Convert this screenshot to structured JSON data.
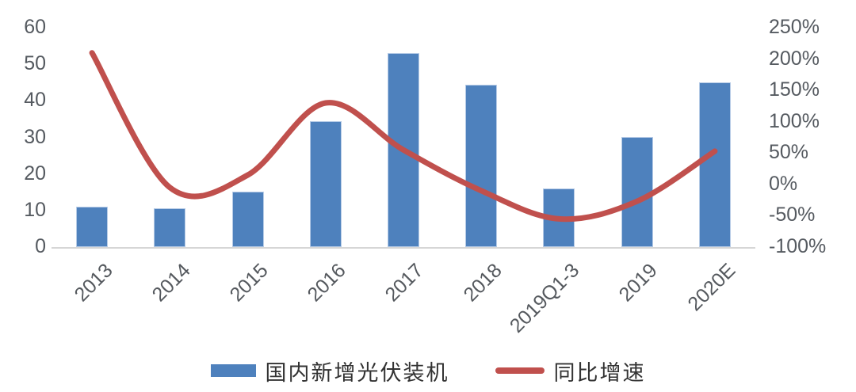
{
  "chart_data": {
    "type": "combo-bar-line",
    "title": "",
    "categories": [
      "2013",
      "2014",
      "2015",
      "2016",
      "2017",
      "2018",
      "2019Q1-3",
      "2019",
      "2020E"
    ],
    "series": [
      {
        "name": "国内新增光伏装机",
        "type": "bar",
        "axis": "left",
        "color": "#4e81bd",
        "values": [
          11,
          10.6,
          15.1,
          34.5,
          53,
          44.3,
          16,
          30.1,
          45
        ]
      },
      {
        "name": "同比增速",
        "type": "line",
        "axis": "right",
        "color": "#c0504d",
        "smooth": true,
        "values": [
          210,
          -5,
          15,
          130,
          55,
          -10,
          -55,
          -27,
          53
        ],
        "unit": "%"
      }
    ],
    "left_axis": {
      "min": 0,
      "max": 60,
      "tick_labels": [
        "60",
        "50",
        "40",
        "30",
        "20",
        "10",
        "0"
      ],
      "tick_values": [
        60,
        50,
        40,
        30,
        20,
        10,
        0
      ]
    },
    "right_axis": {
      "min": -100,
      "max": 250,
      "tick_labels": [
        "250%",
        "200%",
        "150%",
        "100%",
        "50%",
        "0%",
        "-50%",
        "-100%"
      ],
      "tick_values": [
        250,
        200,
        150,
        100,
        50,
        0,
        -50,
        -100
      ]
    },
    "grid": false,
    "legend_position": "bottom"
  },
  "legend": {
    "bar_label": "国内新增光伏装机",
    "line_label": "同比增速"
  },
  "colors": {
    "bar_fill": "#4e81bd",
    "bar_border": "#b6cbe6",
    "line": "#c0504d",
    "axis_text": "#555a60",
    "axis_line": "#d6d6d6",
    "background": "#ffffff"
  }
}
